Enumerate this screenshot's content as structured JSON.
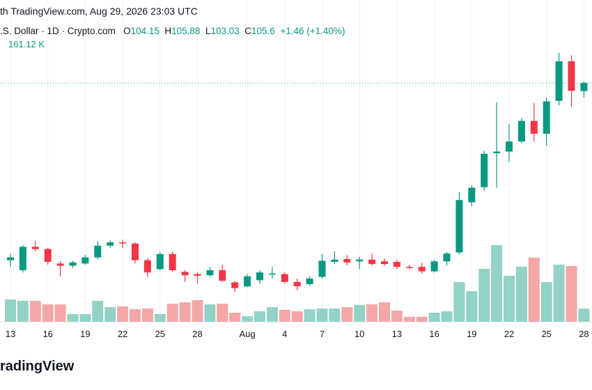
{
  "chart_data": {
    "type": "candlestick",
    "source": "th TradingView.com, Aug 29, 2026 23:03 UTC",
    "symbol": ".S. Dollar · 1D · Crypto.com",
    "legend": {
      "open_key": "O",
      "open": 104.15,
      "high_key": "H",
      "high": 105.88,
      "low_key": "L",
      "low": 103.03,
      "close_key": "C",
      "close": 105.6,
      "change": {
        "value": 1.46,
        "label": "+1.46"
      },
      "change_pct": {
        "value": 1.4,
        "label": "(+1.40%)"
      },
      "volume": {
        "value": 161.12,
        "label": "161.12 K"
      }
    },
    "brand": "radingView",
    "up_color": "#089981",
    "down_color": "#f23645",
    "up_volume_color": "#92d2c7",
    "down_volume_color": "#f5a6a6",
    "grid": true,
    "ylim": [
      66.5,
      120.5
    ],
    "y2lim": [
      0,
      3927
    ],
    "categories": [
      "13",
      null,
      null,
      "16",
      null,
      null,
      "19",
      null,
      null,
      "22",
      null,
      null,
      "25",
      null,
      null,
      "28",
      null,
      null,
      null,
      "Aug",
      null,
      null,
      "4",
      null,
      null,
      "7",
      null,
      null,
      "10",
      null,
      null,
      "13",
      null,
      null,
      "16",
      null,
      null,
      "19",
      null,
      null,
      "22",
      null,
      null,
      "25",
      null,
      null,
      "28"
    ],
    "open": [
      73.8,
      72.0,
      76.2,
      75.8,
      73.2,
      72.8,
      73.2,
      74.3,
      76.4,
      77.0,
      76.8,
      73.8,
      72.2,
      74.9,
      71.7,
      71.3,
      71.1,
      72.0,
      69.8,
      69.1,
      70.2,
      71.2,
      71.3,
      69.9,
      69.5,
      70.8,
      73.5,
      74.0,
      73.6,
      73.9,
      73.6,
      73.5,
      72.6,
      72.6,
      71.8,
      73.6,
      75.2,
      84.2,
      86.9,
      93.0,
      93.3,
      95.1,
      98.8,
      96.5,
      102.4,
      109.5,
      104.15
    ],
    "high": [
      75.0,
      76.5,
      77.3,
      76.0,
      73.6,
      73.7,
      74.8,
      77.2,
      77.3,
      77.5,
      77.0,
      74.2,
      75.3,
      75.3,
      72.0,
      71.7,
      72.6,
      73.0,
      70.1,
      71.3,
      72.0,
      72.6,
      71.6,
      70.5,
      70.9,
      74.9,
      75.4,
      74.7,
      74.4,
      75.0,
      74.1,
      73.9,
      73.0,
      73.3,
      73.8,
      75.3,
      86.0,
      87.2,
      93.4,
      102.1,
      98.3,
      99.3,
      102.0,
      103.0,
      111.0,
      110.6,
      105.88
    ],
    "low": [
      72.6,
      71.6,
      75.4,
      73.0,
      70.9,
      72.4,
      73.0,
      74.0,
      76.0,
      76.0,
      73.2,
      70.8,
      72.0,
      71.7,
      69.9,
      69.6,
      70.8,
      69.9,
      68.1,
      69.0,
      69.6,
      70.5,
      69.6,
      68.4,
      69.2,
      70.5,
      73.1,
      72.9,
      72.2,
      72.9,
      72.8,
      72.2,
      72.2,
      71.4,
      71.6,
      72.8,
      74.8,
      83.5,
      86.2,
      86.8,
      91.4,
      94.8,
      95.1,
      94.3,
      101.6,
      101.3,
      103.03
    ],
    "close": [
      74.3,
      76.2,
      75.8,
      73.5,
      72.8,
      73.4,
      74.3,
      76.4,
      77.0,
      76.8,
      73.8,
      71.6,
      74.9,
      72.0,
      71.1,
      71.0,
      72.0,
      70.1,
      68.8,
      70.9,
      71.6,
      71.4,
      69.9,
      69.1,
      70.5,
      73.7,
      73.9,
      73.4,
      73.9,
      73.1,
      73.1,
      72.6,
      72.4,
      71.8,
      73.6,
      75.0,
      84.6,
      86.8,
      92.9,
      93.3,
      95.1,
      98.8,
      96.5,
      102.3,
      109.5,
      104.2,
      105.6
    ],
    "volume": [
      272,
      255,
      255,
      212,
      212,
      94,
      94,
      255,
      178,
      187,
      153,
      162,
      94,
      221,
      238,
      264,
      212,
      221,
      110,
      68,
      128,
      178,
      145,
      128,
      153,
      162,
      162,
      178,
      204,
      212,
      238,
      136,
      60,
      60,
      110,
      128,
      485,
      374,
      646,
      935,
      561,
      672,
      782,
      485,
      697,
      680,
      161.12
    ]
  }
}
